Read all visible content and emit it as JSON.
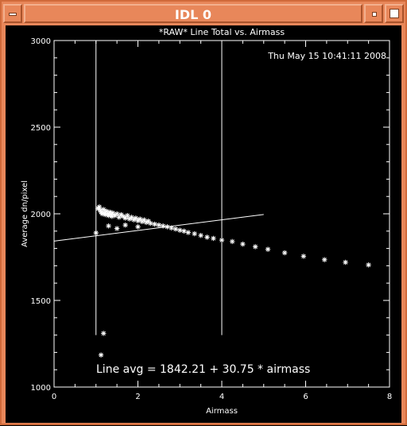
{
  "window": {
    "title": "IDL 0",
    "icons": {
      "menu": "window-menu-icon",
      "minimize": "minimize-icon",
      "maximize": "maximize-icon"
    },
    "colors": {
      "frame": "#e8875a",
      "plot_background": "#000000",
      "plot_foreground": "#ffffff"
    }
  },
  "chart_data": {
    "type": "scatter",
    "title": "*RAW* Line Total vs. Airmass",
    "xlabel": "Airmass",
    "ylabel": "Average dn/pixel",
    "timestamp": "Thu May 15 10:41:11 2008",
    "annotation": "Line avg = 1842.21 + 30.75 * airmass",
    "xlim": [
      0,
      8
    ],
    "ylim": [
      1000,
      3000
    ],
    "x_ticks": [
      "0",
      "2",
      "4",
      "6",
      "8"
    ],
    "y_ticks": [
      "1000",
      "1500",
      "2000",
      "2500",
      "3000"
    ],
    "vertical_lines_x": [
      1.0,
      4.0
    ],
    "vertical_lines_y_range": [
      1300,
      3000
    ],
    "fit_line": {
      "intercept": 1842.21,
      "slope": 30.75,
      "x_range": [
        0,
        5
      ]
    },
    "marker": "asterisk",
    "points": [
      [
        1.0,
        1890
      ],
      [
        1.18,
        1310
      ],
      [
        1.12,
        1185
      ],
      [
        1.05,
        2030
      ],
      [
        1.08,
        2040
      ],
      [
        1.1,
        2020
      ],
      [
        1.12,
        2010
      ],
      [
        1.15,
        2000
      ],
      [
        1.18,
        2025
      ],
      [
        1.2,
        2005
      ],
      [
        1.22,
        1995
      ],
      [
        1.25,
        2015
      ],
      [
        1.28,
        2000
      ],
      [
        1.3,
        1990
      ],
      [
        1.33,
        2010
      ],
      [
        1.35,
        1995
      ],
      [
        1.38,
        1985
      ],
      [
        1.4,
        2005
      ],
      [
        1.45,
        1990
      ],
      [
        1.5,
        2000
      ],
      [
        1.55,
        1980
      ],
      [
        1.6,
        1995
      ],
      [
        1.65,
        1985
      ],
      [
        1.7,
        1975
      ],
      [
        1.75,
        1990
      ],
      [
        1.8,
        1970
      ],
      [
        1.85,
        1980
      ],
      [
        1.9,
        1965
      ],
      [
        1.95,
        1975
      ],
      [
        2.0,
        1960
      ],
      [
        2.05,
        1970
      ],
      [
        2.1,
        1955
      ],
      [
        2.15,
        1965
      ],
      [
        2.2,
        1950
      ],
      [
        2.25,
        1958
      ],
      [
        2.3,
        1945
      ],
      [
        2.4,
        1940
      ],
      [
        2.5,
        1935
      ],
      [
        2.6,
        1930
      ],
      [
        2.7,
        1925
      ],
      [
        2.8,
        1918
      ],
      [
        2.9,
        1912
      ],
      [
        3.0,
        1905
      ],
      [
        3.1,
        1900
      ],
      [
        3.2,
        1892
      ],
      [
        3.35,
        1885
      ],
      [
        3.5,
        1875
      ],
      [
        3.65,
        1865
      ],
      [
        3.8,
        1858
      ],
      [
        4.0,
        1848
      ],
      [
        4.25,
        1840
      ],
      [
        4.5,
        1825
      ],
      [
        4.8,
        1810
      ],
      [
        5.1,
        1795
      ],
      [
        5.5,
        1775
      ],
      [
        5.95,
        1755
      ],
      [
        6.45,
        1735
      ],
      [
        6.95,
        1720
      ],
      [
        7.5,
        1705
      ],
      [
        1.3,
        1930
      ],
      [
        1.5,
        1915
      ],
      [
        1.7,
        1935
      ],
      [
        2.0,
        1925
      ]
    ]
  }
}
